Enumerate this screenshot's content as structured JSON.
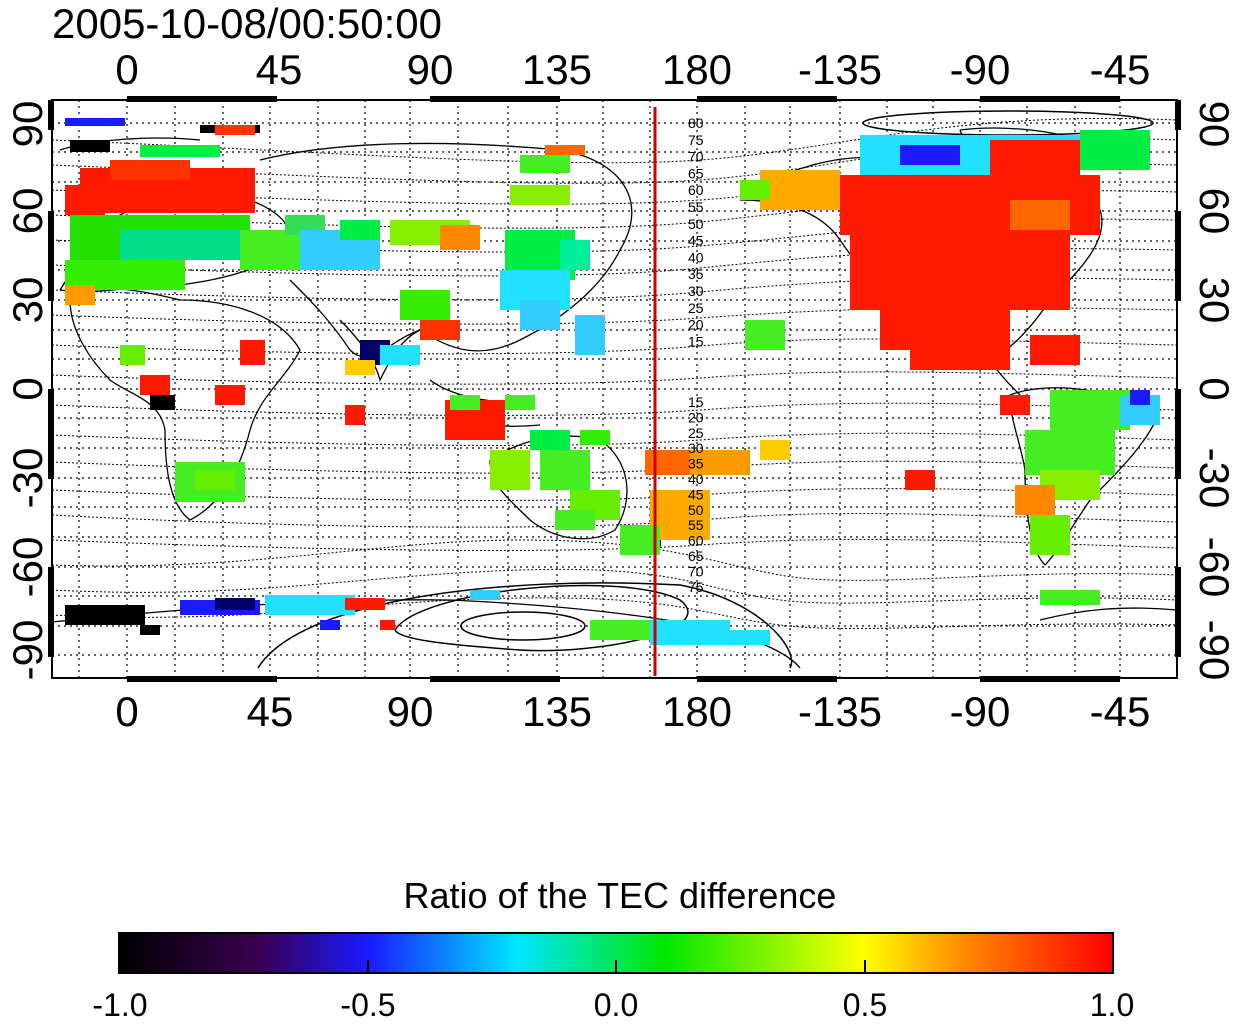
{
  "timestamp": "2005-10-08/00:50:00",
  "map": {
    "x_ticks": [
      "0",
      "45",
      "90",
      "135",
      "180",
      "-135",
      "-90",
      "-45"
    ],
    "y_ticks": [
      "90",
      "60",
      "30",
      "0",
      "-30",
      "-60",
      "-90"
    ],
    "contour_labels_north": [
      "80",
      "75",
      "70",
      "65",
      "60",
      "55",
      "50",
      "45",
      "40",
      "35",
      "30",
      "25",
      "20",
      "15"
    ],
    "contour_labels_south": [
      "15",
      "20",
      "25",
      "30",
      "35",
      "40",
      "45",
      "50",
      "55",
      "60",
      "65",
      "70",
      "75"
    ],
    "terminator_color": "#cc0000"
  },
  "colorbar": {
    "title": "Ratio of the TEC difference",
    "ticks": [
      "-1.0",
      "-0.5",
      "0.0",
      "0.5",
      "1.0"
    ],
    "colors": [
      "#000000",
      "#3a0050",
      "#1a1aff",
      "#00e6ff",
      "#00e800",
      "#ffff00",
      "#ff8a00",
      "#ff0000"
    ]
  },
  "chart_data": {
    "type": "heatmap",
    "title": "2005-10-08/00:50:00",
    "colorbar_label": "Ratio of the TEC difference",
    "value_range": [
      -1.0,
      1.0
    ],
    "x_ticks": [
      "0",
      "45",
      "90",
      "135",
      "180",
      "-135",
      "-90",
      "-45"
    ],
    "y_ticks": [
      "90",
      "60",
      "30",
      "0",
      "-30",
      "-60",
      "-90"
    ],
    "ylim": [
      -90,
      90
    ],
    "grid": true
  }
}
